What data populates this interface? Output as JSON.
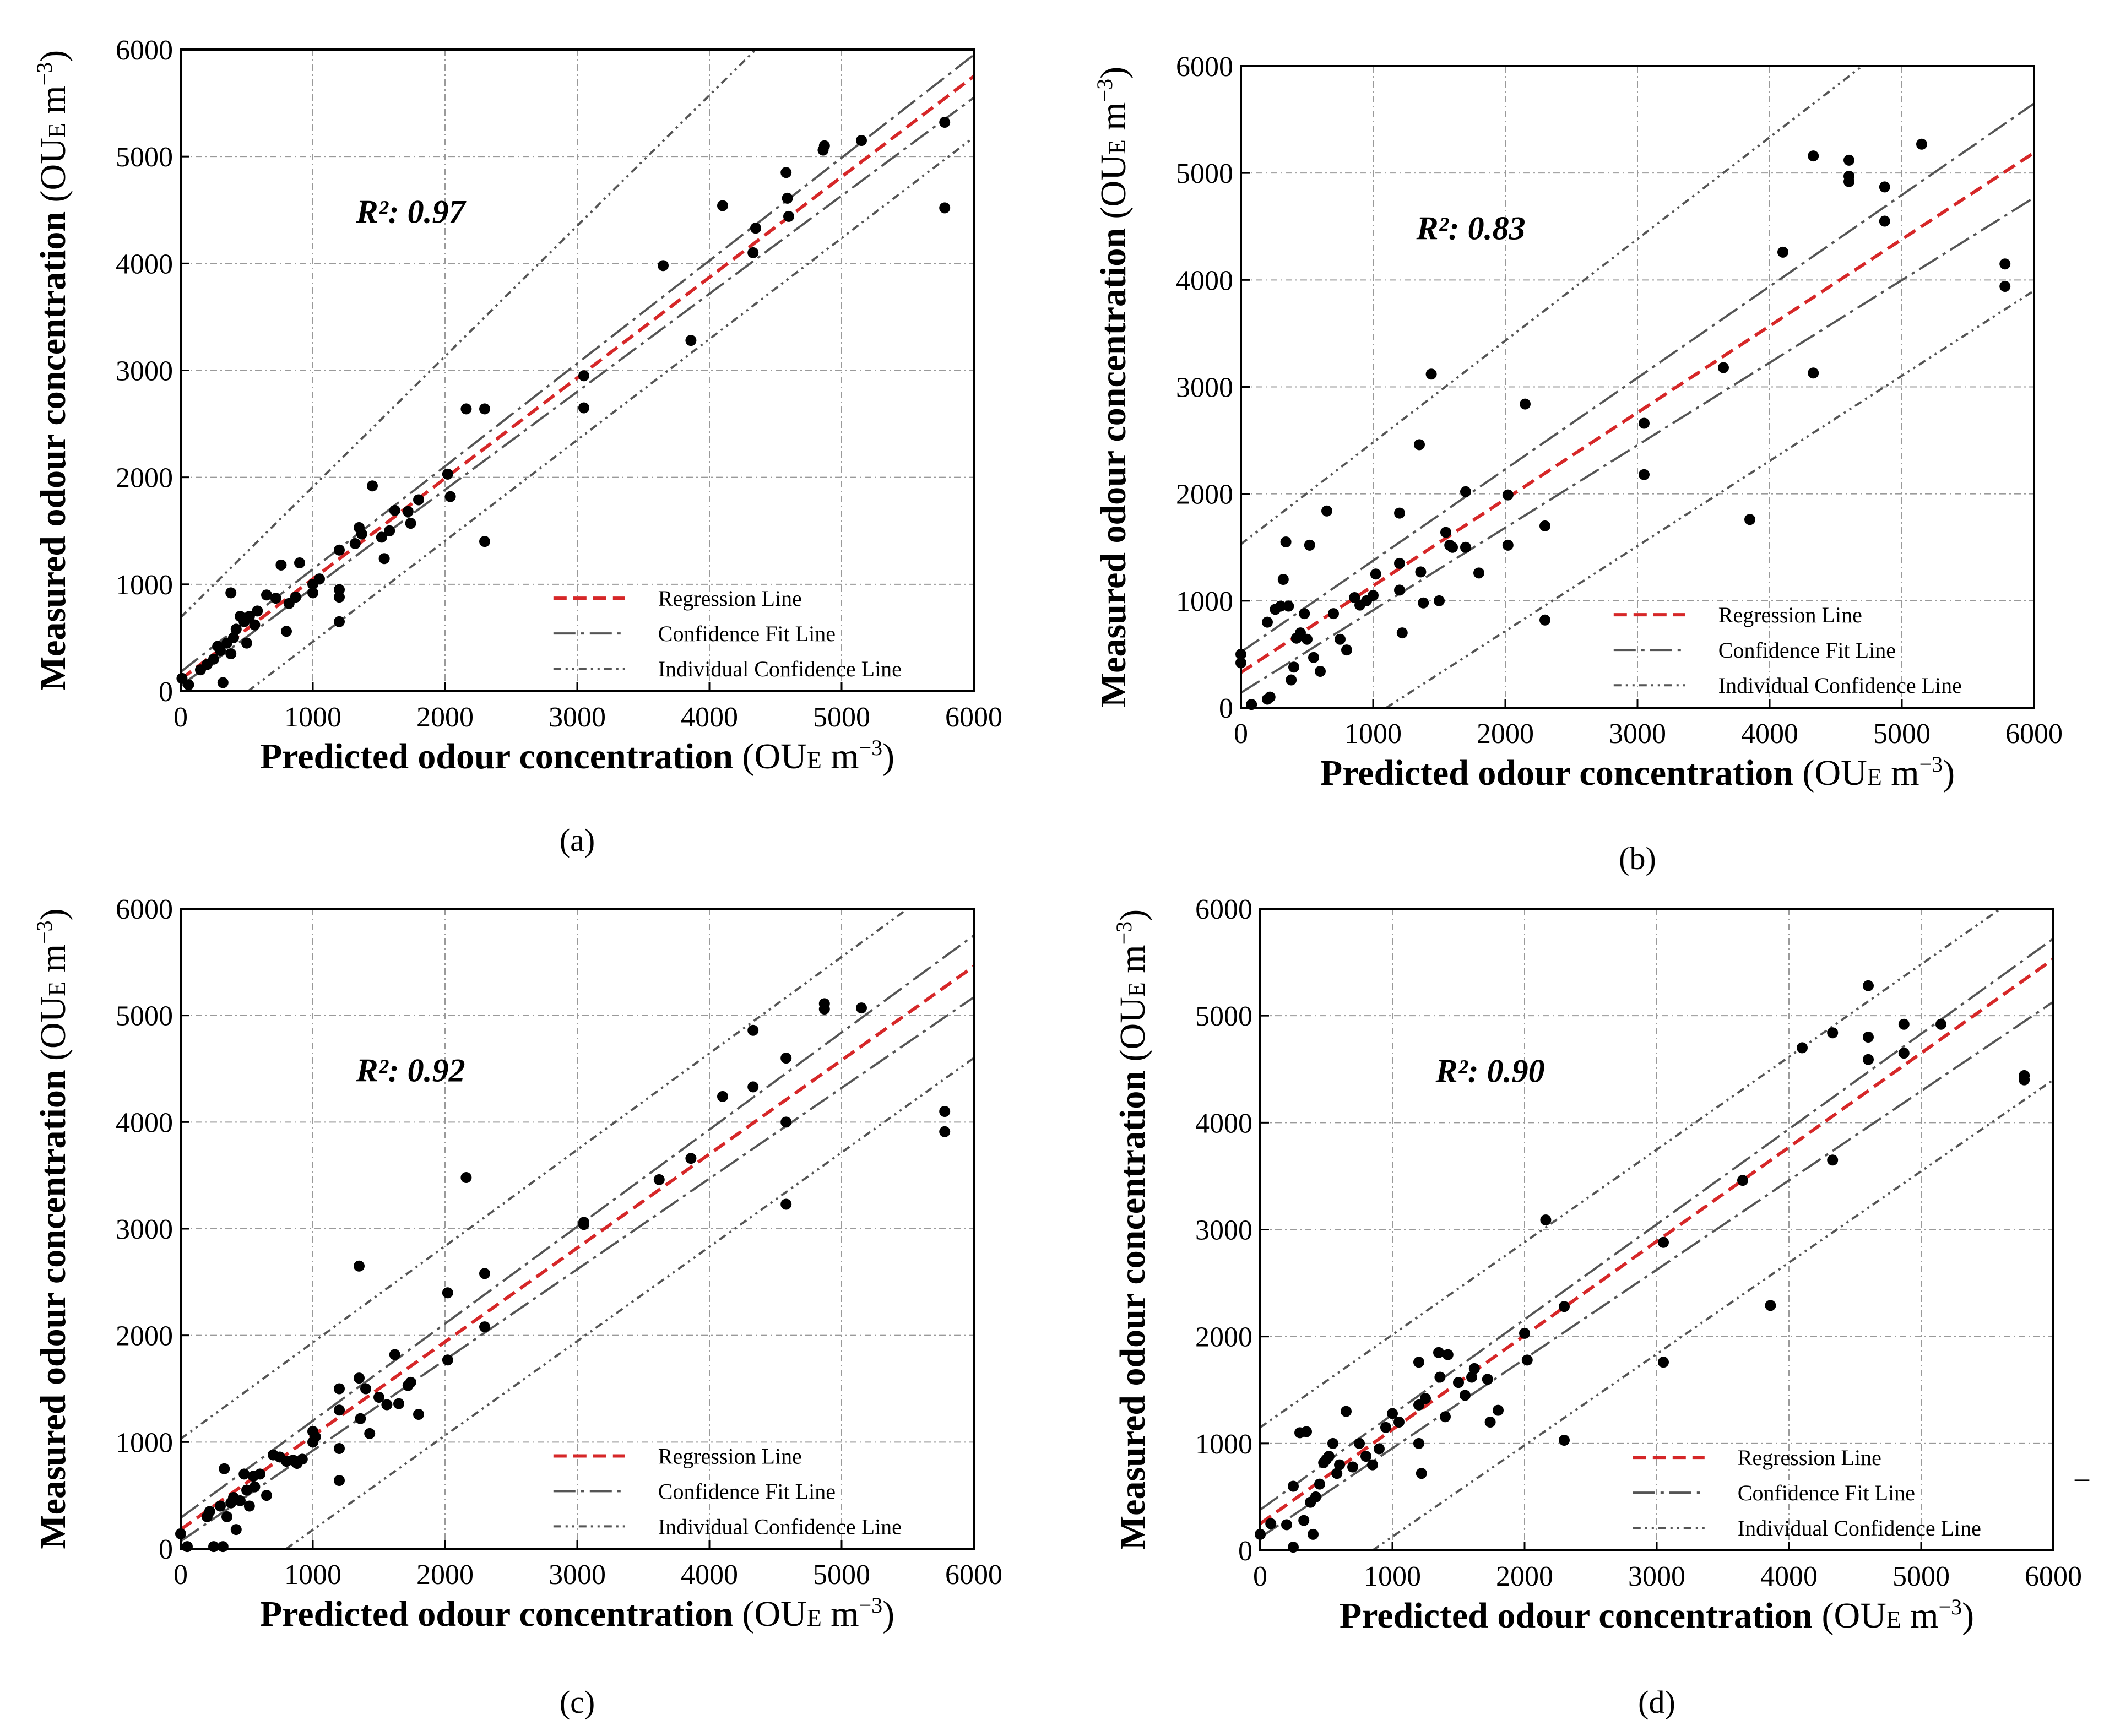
{
  "figure": {
    "minus_glyph": "–"
  },
  "chart_data": [
    {
      "type": "scatter",
      "panel_label": "(a)",
      "xlabel": "Predicted odour concentration",
      "ylabel": "Measured odour concentration",
      "unit_prefix": "(OU",
      "unit_sub": "E",
      "unit_mid": " m",
      "unit_sup": "−3",
      "unit_suffix": ")",
      "xlim": [
        0,
        6000
      ],
      "ylim": [
        0,
        6000
      ],
      "xticks": [
        0,
        1000,
        2000,
        3000,
        4000,
        5000,
        6000
      ],
      "yticks": [
        0,
        1000,
        2000,
        3000,
        4000,
        5000,
        6000
      ],
      "grid": true,
      "r2_label": "R²: 0.97",
      "legend": [
        "Regression Line",
        "Confidence Fit Line",
        "Individual Confidence Line"
      ],
      "legend_position": "bottom-right",
      "regression": {
        "intercept": 110,
        "slope": 0.94
      },
      "confidence_fit": {
        "upper": [
          [
            0,
            180
          ],
          [
            6000,
            5950
          ]
        ],
        "lower": [
          [
            0,
            50
          ],
          [
            6000,
            5550
          ]
        ]
      },
      "individual_confidence": {
        "upper": [
          [
            0,
            690
          ],
          [
            4350,
            6000
          ]
        ],
        "lower": [
          [
            510,
            0
          ],
          [
            6000,
            5180
          ]
        ]
      },
      "points": [
        [
          10,
          120
        ],
        [
          60,
          60
        ],
        [
          150,
          200
        ],
        [
          200,
          250
        ],
        [
          250,
          300
        ],
        [
          280,
          420
        ],
        [
          300,
          380
        ],
        [
          320,
          80
        ],
        [
          350,
          450
        ],
        [
          380,
          350
        ],
        [
          400,
          500
        ],
        [
          420,
          580
        ],
        [
          450,
          700
        ],
        [
          480,
          650
        ],
        [
          500,
          450
        ],
        [
          520,
          700
        ],
        [
          560,
          620
        ],
        [
          580,
          750
        ],
        [
          380,
          920
        ],
        [
          650,
          900
        ],
        [
          720,
          870
        ],
        [
          760,
          1180
        ],
        [
          800,
          560
        ],
        [
          820,
          820
        ],
        [
          870,
          880
        ],
        [
          900,
          1200
        ],
        [
          1000,
          1000
        ],
        [
          1000,
          920
        ],
        [
          1050,
          1050
        ],
        [
          1200,
          950
        ],
        [
          1200,
          880
        ],
        [
          1200,
          650
        ],
        [
          1200,
          1320
        ],
        [
          1320,
          1380
        ],
        [
          1350,
          1530
        ],
        [
          1370,
          1470
        ],
        [
          1450,
          1920
        ],
        [
          1520,
          1440
        ],
        [
          1540,
          1240
        ],
        [
          1580,
          1500
        ],
        [
          1620,
          1690
        ],
        [
          1720,
          1680
        ],
        [
          1740,
          1570
        ],
        [
          1800,
          1790
        ],
        [
          2020,
          2030
        ],
        [
          2040,
          1820
        ],
        [
          2160,
          2640
        ],
        [
          2300,
          2640
        ],
        [
          2300,
          1400
        ],
        [
          3050,
          2950
        ],
        [
          3050,
          2650
        ],
        [
          3650,
          3980
        ],
        [
          3860,
          3280
        ],
        [
          4100,
          4540
        ],
        [
          4330,
          4100
        ],
        [
          4350,
          4330
        ],
        [
          4580,
          4850
        ],
        [
          4590,
          4610
        ],
        [
          4600,
          4440
        ],
        [
          4860,
          5060
        ],
        [
          4870,
          5100
        ],
        [
          5150,
          5150
        ],
        [
          5780,
          5320
        ],
        [
          5780,
          4520
        ]
      ]
    },
    {
      "type": "scatter",
      "panel_label": "(b)",
      "xlabel": "Predicted odour concentration",
      "ylabel": "Measured odour concentration",
      "unit_prefix": "(OU",
      "unit_sub": "E",
      "unit_mid": " m",
      "unit_sup": "−3",
      "unit_suffix": ")",
      "xlim": [
        0,
        6000
      ],
      "ylim": [
        0,
        6000
      ],
      "xticks": [
        0,
        1000,
        2000,
        3000,
        4000,
        5000,
        6000
      ],
      "yticks": [
        0,
        1000,
        2000,
        3000,
        4000,
        5000,
        6000
      ],
      "grid": true,
      "r2_label": "R²: 0.83",
      "legend": [
        "Regression Line",
        "Confidence Fit Line",
        "Individual Confidence Line"
      ],
      "legend_position": "bottom-right",
      "regression": {
        "intercept": 330,
        "slope": 0.81
      },
      "confidence_fit": {
        "upper": [
          [
            0,
            520
          ],
          [
            6000,
            5650
          ]
        ],
        "lower": [
          [
            0,
            140
          ],
          [
            6000,
            4770
          ]
        ]
      },
      "individual_confidence": {
        "upper": [
          [
            0,
            1530
          ],
          [
            4700,
            6000
          ]
        ],
        "lower": [
          [
            1100,
            0
          ],
          [
            6000,
            3900
          ]
        ]
      },
      "points": [
        [
          0,
          420
        ],
        [
          0,
          500
        ],
        [
          80,
          30
        ],
        [
          200,
          80
        ],
        [
          220,
          100
        ],
        [
          200,
          800
        ],
        [
          260,
          920
        ],
        [
          300,
          950
        ],
        [
          320,
          1200
        ],
        [
          340,
          1550
        ],
        [
          360,
          950
        ],
        [
          380,
          260
        ],
        [
          400,
          380
        ],
        [
          420,
          650
        ],
        [
          450,
          700
        ],
        [
          480,
          880
        ],
        [
          500,
          640
        ],
        [
          520,
          1520
        ],
        [
          550,
          470
        ],
        [
          600,
          340
        ],
        [
          650,
          1840
        ],
        [
          700,
          880
        ],
        [
          750,
          640
        ],
        [
          800,
          540
        ],
        [
          860,
          1030
        ],
        [
          900,
          960
        ],
        [
          950,
          1000
        ],
        [
          1000,
          1050
        ],
        [
          1020,
          1250
        ],
        [
          1200,
          1820
        ],
        [
          1200,
          1100
        ],
        [
          1220,
          700
        ],
        [
          1200,
          1350
        ],
        [
          1350,
          2460
        ],
        [
          1360,
          1270
        ],
        [
          1380,
          980
        ],
        [
          1440,
          3120
        ],
        [
          1500,
          1000
        ],
        [
          1550,
          1640
        ],
        [
          1580,
          1520
        ],
        [
          1600,
          1500
        ],
        [
          1700,
          2020
        ],
        [
          1700,
          1500
        ],
        [
          1800,
          1260
        ],
        [
          2020,
          1990
        ],
        [
          2020,
          1520
        ],
        [
          2150,
          2840
        ],
        [
          2300,
          1700
        ],
        [
          2300,
          820
        ],
        [
          3050,
          2660
        ],
        [
          3050,
          2180
        ],
        [
          3650,
          3180
        ],
        [
          3850,
          1760
        ],
        [
          4100,
          4260
        ],
        [
          4330,
          5160
        ],
        [
          4330,
          3130
        ],
        [
          4600,
          5120
        ],
        [
          4600,
          4970
        ],
        [
          4600,
          4920
        ],
        [
          4870,
          4870
        ],
        [
          4870,
          4550
        ],
        [
          5150,
          5270
        ],
        [
          5780,
          4150
        ],
        [
          5780,
          3940
        ]
      ]
    },
    {
      "type": "scatter",
      "panel_label": "(c)",
      "xlabel": "Predicted odour concentration",
      "ylabel": "Measured odour concentration",
      "unit_prefix": "(OU",
      "unit_sub": "E",
      "unit_mid": " m",
      "unit_sup": "−3",
      "unit_suffix": ")",
      "xlim": [
        0,
        6000
      ],
      "ylim": [
        0,
        6000
      ],
      "xticks": [
        0,
        1000,
        2000,
        3000,
        4000,
        5000,
        6000
      ],
      "yticks": [
        0,
        1000,
        2000,
        3000,
        4000,
        5000,
        6000
      ],
      "grid": true,
      "r2_label": "R²: 0.92",
      "legend": [
        "Regression Line",
        "Confidence Fit Line",
        "Individual Confidence Line"
      ],
      "legend_position": "bottom-right",
      "regression": {
        "intercept": 180,
        "slope": 0.88
      },
      "confidence_fit": {
        "upper": [
          [
            0,
            290
          ],
          [
            6000,
            5750
          ]
        ],
        "lower": [
          [
            0,
            70
          ],
          [
            6000,
            5170
          ]
        ]
      },
      "individual_confidence": {
        "upper": [
          [
            0,
            1030
          ],
          [
            5500,
            6000
          ]
        ],
        "lower": [
          [
            800,
            0
          ],
          [
            6000,
            4600
          ]
        ]
      },
      "points": [
        [
          0,
          140
        ],
        [
          50,
          20
        ],
        [
          200,
          300
        ],
        [
          220,
          350
        ],
        [
          250,
          20
        ],
        [
          300,
          400
        ],
        [
          320,
          20
        ],
        [
          330,
          750
        ],
        [
          350,
          300
        ],
        [
          380,
          430
        ],
        [
          400,
          480
        ],
        [
          420,
          180
        ],
        [
          450,
          450
        ],
        [
          480,
          700
        ],
        [
          500,
          550
        ],
        [
          520,
          400
        ],
        [
          550,
          680
        ],
        [
          560,
          580
        ],
        [
          600,
          700
        ],
        [
          650,
          500
        ],
        [
          700,
          880
        ],
        [
          750,
          860
        ],
        [
          800,
          820
        ],
        [
          850,
          830
        ],
        [
          880,
          800
        ],
        [
          920,
          840
        ],
        [
          1000,
          1000
        ],
        [
          1000,
          1100
        ],
        [
          1020,
          1050
        ],
        [
          1200,
          1500
        ],
        [
          1200,
          1300
        ],
        [
          1200,
          940
        ],
        [
          1200,
          640
        ],
        [
          1350,
          1600
        ],
        [
          1350,
          2650
        ],
        [
          1360,
          1220
        ],
        [
          1400,
          1500
        ],
        [
          1430,
          1080
        ],
        [
          1500,
          1420
        ],
        [
          1560,
          1350
        ],
        [
          1620,
          1820
        ],
        [
          1650,
          1360
        ],
        [
          1720,
          1530
        ],
        [
          1740,
          1560
        ],
        [
          1800,
          1260
        ],
        [
          2020,
          2400
        ],
        [
          2020,
          1770
        ],
        [
          2160,
          3480
        ],
        [
          2300,
          2580
        ],
        [
          2300,
          2080
        ],
        [
          3050,
          3040
        ],
        [
          3050,
          3060
        ],
        [
          3620,
          3460
        ],
        [
          3860,
          3660
        ],
        [
          4100,
          4240
        ],
        [
          4330,
          4860
        ],
        [
          4330,
          4330
        ],
        [
          4580,
          4600
        ],
        [
          4580,
          4000
        ],
        [
          4580,
          3230
        ],
        [
          4870,
          5060
        ],
        [
          4870,
          5110
        ],
        [
          5150,
          5070
        ],
        [
          5780,
          4100
        ],
        [
          5780,
          3910
        ]
      ]
    },
    {
      "type": "scatter",
      "panel_label": "(d)",
      "xlabel": "Predicted odour concentration",
      "ylabel": "Measured odour concentration",
      "unit_prefix": "(OU",
      "unit_sub": "E",
      "unit_mid": " m",
      "unit_sup": "−3",
      "unit_suffix": ")",
      "xlim": [
        0,
        6000
      ],
      "ylim": [
        0,
        6000
      ],
      "xticks": [
        0,
        1000,
        2000,
        3000,
        4000,
        5000,
        6000
      ],
      "yticks": [
        0,
        1000,
        2000,
        3000,
        4000,
        5000,
        6000
      ],
      "grid": true,
      "r2_label": "R²: 0.90",
      "legend": [
        "Regression Line",
        "Confidence Fit Line",
        "Individual Confidence Line"
      ],
      "legend_position": "bottom-right",
      "regression": {
        "intercept": 250,
        "slope": 0.88
      },
      "confidence_fit": {
        "upper": [
          [
            0,
            380
          ],
          [
            6000,
            5720
          ]
        ],
        "lower": [
          [
            0,
            120
          ],
          [
            6000,
            5130
          ]
        ]
      },
      "individual_confidence": {
        "upper": [
          [
            0,
            1150
          ],
          [
            5600,
            6000
          ]
        ],
        "lower": [
          [
            850,
            0
          ],
          [
            6000,
            4400
          ]
        ]
      },
      "points": [
        [
          0,
          150
        ],
        [
          80,
          250
        ],
        [
          200,
          240
        ],
        [
          250,
          30
        ],
        [
          250,
          600
        ],
        [
          300,
          1100
        ],
        [
          330,
          280
        ],
        [
          350,
          1110
        ],
        [
          380,
          450
        ],
        [
          400,
          150
        ],
        [
          420,
          500
        ],
        [
          450,
          620
        ],
        [
          480,
          820
        ],
        [
          500,
          850
        ],
        [
          520,
          880
        ],
        [
          550,
          1000
        ],
        [
          580,
          720
        ],
        [
          600,
          800
        ],
        [
          650,
          1300
        ],
        [
          700,
          780
        ],
        [
          750,
          1000
        ],
        [
          800,
          880
        ],
        [
          850,
          800
        ],
        [
          900,
          950
        ],
        [
          950,
          1150
        ],
        [
          1000,
          1280
        ],
        [
          1050,
          1200
        ],
        [
          1200,
          1360
        ],
        [
          1200,
          1760
        ],
        [
          1200,
          1000
        ],
        [
          1220,
          720
        ],
        [
          1250,
          1420
        ],
        [
          1350,
          1850
        ],
        [
          1360,
          1620
        ],
        [
          1400,
          1250
        ],
        [
          1420,
          1830
        ],
        [
          1500,
          1570
        ],
        [
          1550,
          1450
        ],
        [
          1600,
          1620
        ],
        [
          1620,
          1700
        ],
        [
          1720,
          1600
        ],
        [
          1740,
          1200
        ],
        [
          1800,
          1310
        ],
        [
          2000,
          2030
        ],
        [
          2020,
          1780
        ],
        [
          2160,
          3090
        ],
        [
          2300,
          2280
        ],
        [
          2300,
          1030
        ],
        [
          3050,
          2880
        ],
        [
          3050,
          1760
        ],
        [
          3650,
          3460
        ],
        [
          3860,
          2290
        ],
        [
          4100,
          4700
        ],
        [
          4330,
          4840
        ],
        [
          4330,
          3650
        ],
        [
          4600,
          5280
        ],
        [
          4600,
          4800
        ],
        [
          4600,
          4590
        ],
        [
          4870,
          4920
        ],
        [
          4870,
          4650
        ],
        [
          5150,
          4920
        ],
        [
          5780,
          4400
        ],
        [
          5780,
          4440
        ]
      ]
    }
  ]
}
